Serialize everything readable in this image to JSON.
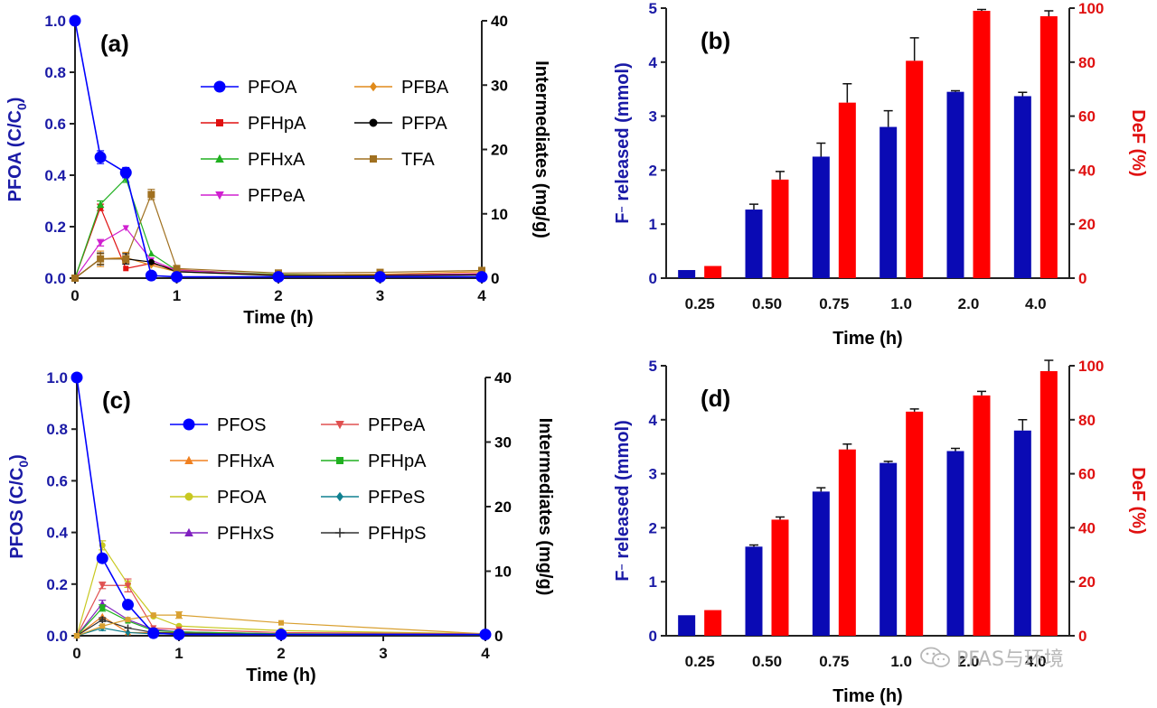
{
  "chart_data": [
    {
      "id": "a",
      "type": "line",
      "panel_label": "(a)",
      "xlabel": "Time (h)",
      "ylabel_left": "PFOA (C/C0)",
      "ylabel_left_main": "PFOA (C/C",
      "ylabel_left_sub": "0",
      "ylabel_left_close": ")",
      "ylabel_right": "Intermediates (mg/g)",
      "xlim": [
        0,
        4
      ],
      "ylim_left": [
        0,
        1.0
      ],
      "ylim_right": [
        0,
        40
      ],
      "x_ticks": [
        0,
        1,
        2,
        3,
        4
      ],
      "y_left_ticks": [
        "0.0",
        "0.2",
        "0.4",
        "0.6",
        "0.8",
        "1.0"
      ],
      "y_right_ticks": [
        "0",
        "10",
        "20",
        "30",
        "40"
      ],
      "colors": {
        "left_axis": "#1a1aa6",
        "right_axis": "#000000"
      },
      "legend_placement": "top-right",
      "series": [
        {
          "name": "PFOA",
          "axis": "left",
          "color": "#0000ff",
          "marker": "circle",
          "marker_size": 6,
          "x": [
            0,
            0.25,
            0.5,
            0.75,
            1,
            2,
            3,
            4
          ],
          "y": [
            1.0,
            0.47,
            0.41,
            0.01,
            0.005,
            0.005,
            0.005,
            0.005
          ],
          "err": [
            0,
            0.025,
            0.02,
            0,
            0,
            0,
            0,
            0
          ]
        },
        {
          "name": "PFHpA",
          "axis": "right",
          "color": "#e01010",
          "marker": "square",
          "marker_size": 3,
          "x": [
            0,
            0.25,
            0.5,
            0.75,
            1,
            2,
            3,
            4
          ],
          "y": [
            0,
            11,
            1.5,
            2.3,
            1.3,
            0.5,
            0.5,
            0.7
          ],
          "err": [
            0,
            0.5,
            0,
            0,
            0,
            0,
            0,
            0
          ]
        },
        {
          "name": "PFHxA",
          "axis": "right",
          "color": "#20b020",
          "marker": "triangle",
          "marker_size": 3,
          "x": [
            0,
            0.25,
            0.5,
            0.75,
            1,
            2,
            3,
            4
          ],
          "y": [
            0,
            11.5,
            15.5,
            3.8,
            1.2,
            0.6,
            0.5,
            0.6
          ],
          "err": [
            0,
            0.5,
            0.6,
            0,
            0,
            0,
            0,
            0
          ]
        },
        {
          "name": "PFPeA",
          "axis": "right",
          "color": "#d020d0",
          "marker": "triangle-down",
          "marker_size": 3,
          "x": [
            0,
            0.25,
            0.5,
            0.75,
            1,
            2,
            3,
            4
          ],
          "y": [
            0,
            5.5,
            7.8,
            2.8,
            1.2,
            0.5,
            0.5,
            0.6
          ],
          "err": [
            0,
            0.5,
            0,
            0,
            0,
            0,
            0,
            0
          ]
        },
        {
          "name": "PFBA",
          "axis": "right",
          "color": "#e08a1a",
          "marker": "diamond",
          "marker_size": 3,
          "x": [
            0,
            0.25,
            0.5,
            0.75,
            1,
            2,
            3,
            4
          ],
          "y": [
            0,
            3.0,
            3.2,
            2.0,
            1.0,
            0.5,
            0.6,
            1.0
          ],
          "err": [
            0,
            1.2,
            0.8,
            0,
            0,
            0,
            0,
            0.3
          ]
        },
        {
          "name": "PFPA",
          "axis": "right",
          "color": "#000000",
          "marker": "circle",
          "marker_size": 3,
          "x": [
            0,
            0.25,
            0.5,
            0.75,
            1,
            2,
            3,
            4
          ],
          "y": [
            0,
            3.0,
            3.0,
            2.5,
            1.0,
            0.4,
            0.4,
            0.5
          ],
          "err": [
            0,
            0.9,
            0.8,
            0,
            0,
            0,
            0,
            0
          ]
        },
        {
          "name": "TFA",
          "axis": "right",
          "color": "#a07020",
          "marker": "square",
          "marker_size": 4,
          "x": [
            0,
            0.25,
            0.5,
            0.75,
            1,
            2,
            3,
            4
          ],
          "y": [
            0,
            3.0,
            3.0,
            13.0,
            1.5,
            0.8,
            0.9,
            1.2
          ],
          "err": [
            0,
            0.8,
            0.5,
            0.8,
            0,
            0,
            0,
            0
          ]
        }
      ]
    },
    {
      "id": "b",
      "type": "bar",
      "panel_label": "(b)",
      "xlabel": "Time (h)",
      "ylabel_left": "F⁻ released (mmol)",
      "ylabel_left_parts": [
        "F",
        "⁻",
        " released (mmol)"
      ],
      "ylabel_right": "DeF (%)",
      "categories": [
        "0.25",
        "0.50",
        "0.75",
        "1.0",
        "2.0",
        "4.0"
      ],
      "ylim_left": [
        0,
        5
      ],
      "ylim_right": [
        0,
        100
      ],
      "y_left_ticks": [
        "0",
        "1",
        "2",
        "3",
        "4",
        "5"
      ],
      "y_right_ticks": [
        "0",
        "20",
        "40",
        "60",
        "80",
        "100"
      ],
      "colors": {
        "left_axis": "#1a1aa6",
        "right_axis": "#e01010",
        "bar_left": "#0a0ab4",
        "bar_right": "#ff0000"
      },
      "series": [
        {
          "name": "F⁻ released",
          "axis": "left",
          "color": "#0a0ab4",
          "values": [
            0.15,
            1.27,
            2.25,
            2.8,
            3.45,
            3.37
          ],
          "err": [
            0,
            0.1,
            0.25,
            0.3,
            0.02,
            0.07
          ]
        },
        {
          "name": "DeF",
          "axis": "right",
          "color": "#ff0000",
          "values": [
            4.5,
            36.5,
            65,
            80.5,
            99,
            97
          ],
          "err": [
            0,
            3,
            7,
            8.5,
            0.5,
            2
          ]
        }
      ]
    },
    {
      "id": "c",
      "type": "line",
      "panel_label": "(c)",
      "xlabel": "Time (h)",
      "ylabel_left": "PFOS (C/C0)",
      "ylabel_left_main": "PFOS (C/C",
      "ylabel_left_sub": "0",
      "ylabel_left_close": ")",
      "ylabel_right": "Intermediates (mg/g)",
      "xlim": [
        0,
        4
      ],
      "ylim_left": [
        0,
        1.0
      ],
      "ylim_right": [
        0,
        40
      ],
      "x_ticks": [
        0,
        1,
        2,
        3,
        4
      ],
      "y_left_ticks": [
        "0.0",
        "0.2",
        "0.4",
        "0.6",
        "0.8",
        "1.0"
      ],
      "y_right_ticks": [
        "0",
        "10",
        "20",
        "30",
        "40"
      ],
      "colors": {
        "left_axis": "#1a1aa6",
        "right_axis": "#000000"
      },
      "legend_placement": "top-right",
      "series": [
        {
          "name": "PFOS",
          "axis": "left",
          "color": "#0000ff",
          "marker": "circle",
          "marker_size": 6,
          "x": [
            0,
            0.25,
            0.5,
            0.75,
            1,
            2,
            4
          ],
          "y": [
            1.0,
            0.3,
            0.12,
            0.01,
            0.005,
            0.005,
            0.005
          ],
          "err": [
            0,
            0.015,
            0.01,
            0,
            0,
            0,
            0
          ]
        },
        {
          "name": "PFHxA",
          "axis": "right",
          "color": "#f08020",
          "marker": "triangle",
          "marker_size": 3,
          "x": [
            0,
            0.25,
            0.5,
            0.75,
            1,
            2,
            4
          ],
          "y": [
            0,
            3,
            0.5,
            0.5,
            0.5,
            0.3,
            0.2
          ],
          "err": [
            0,
            0,
            0,
            0,
            0,
            0,
            0
          ]
        },
        {
          "name": "PFOA",
          "axis": "right",
          "color": "#c8c820",
          "marker": "circle",
          "marker_size": 3,
          "x": [
            0,
            0.25,
            0.5,
            0.75,
            1,
            2,
            4
          ],
          "y": [
            0,
            14,
            8,
            3,
            1.5,
            0.8,
            0.3
          ],
          "err": [
            0,
            0.7,
            0.5,
            0,
            0,
            0,
            0
          ]
        },
        {
          "name": "PFHxS",
          "axis": "right",
          "color": "#8020c0",
          "marker": "triangle",
          "marker_size": 3,
          "x": [
            0,
            0.25,
            0.5,
            0.75,
            1,
            2,
            4
          ],
          "y": [
            0,
            5,
            2.5,
            1,
            0.6,
            0.3,
            0.2
          ],
          "err": [
            0,
            0.5,
            0,
            0,
            0,
            0,
            0
          ]
        },
        {
          "name": "PFPeA",
          "axis": "right",
          "color": "#e05050",
          "marker": "triangle-down",
          "marker_size": 3,
          "x": [
            0,
            0.25,
            0.5,
            0.75,
            1,
            2,
            4
          ],
          "y": [
            0,
            7.8,
            7.8,
            1.2,
            1.0,
            0.5,
            0.3
          ],
          "err": [
            0,
            0.5,
            1.0,
            0,
            0,
            0,
            0
          ]
        },
        {
          "name": "PFHpA",
          "axis": "right",
          "color": "#20b020",
          "marker": "square",
          "marker_size": 3,
          "x": [
            0,
            0.25,
            0.5,
            0.75,
            1,
            2,
            4
          ],
          "y": [
            0,
            4.3,
            2.3,
            0.8,
            0.6,
            0.3,
            0.2
          ],
          "err": [
            0,
            0.5,
            0,
            0,
            0,
            0,
            0
          ]
        },
        {
          "name": "PFPeS",
          "axis": "right",
          "color": "#108090",
          "marker": "diamond",
          "marker_size": 3,
          "x": [
            0,
            0.25,
            0.5,
            0.75,
            1,
            2,
            4
          ],
          "y": [
            0,
            1.2,
            0.5,
            0.3,
            0.3,
            0.2,
            0.1
          ],
          "err": [
            0,
            0.4,
            0,
            0,
            0,
            0,
            0
          ]
        },
        {
          "name": "PFHpS",
          "axis": "right",
          "color": "#303030",
          "marker": "plus",
          "marker_size": 3,
          "x": [
            0,
            0.25,
            0.5,
            0.75,
            1,
            2,
            4
          ],
          "y": [
            0,
            2.5,
            1.2,
            0.5,
            0.4,
            0.2,
            0.1
          ],
          "err": [
            0,
            0.3,
            0,
            0,
            0,
            0,
            0
          ]
        },
        {
          "name": "",
          "axis": "right",
          "color": "#d9a030",
          "marker": "square",
          "marker_size": 3,
          "x": [
            0,
            0.25,
            0.5,
            0.75,
            1,
            2,
            4
          ],
          "y": [
            0,
            1.5,
            2.5,
            3.2,
            3.2,
            2.0,
            0.3
          ],
          "err": [
            0,
            0,
            0,
            0,
            0.5,
            0,
            0
          ]
        }
      ]
    },
    {
      "id": "d",
      "type": "bar",
      "panel_label": "(d)",
      "xlabel": "Time (h)",
      "ylabel_left": "F⁻ released (mmol)",
      "ylabel_left_parts": [
        "F",
        "⁻",
        " released (mmol)"
      ],
      "ylabel_right": "DeF (%)",
      "categories": [
        "0.25",
        "0.50",
        "0.75",
        "1.0",
        "2.0",
        "4.0"
      ],
      "ylim_left": [
        0,
        5
      ],
      "ylim_right": [
        0,
        100
      ],
      "y_left_ticks": [
        "0",
        "1",
        "2",
        "3",
        "4",
        "5"
      ],
      "y_right_ticks": [
        "0",
        "20",
        "40",
        "60",
        "80",
        "100"
      ],
      "colors": {
        "left_axis": "#1a1aa6",
        "right_axis": "#e01010",
        "bar_left": "#0a0ab4",
        "bar_right": "#ff0000"
      },
      "series": [
        {
          "name": "F⁻ released",
          "axis": "left",
          "color": "#0a0ab4",
          "values": [
            0.38,
            1.65,
            2.67,
            3.2,
            3.42,
            3.8
          ],
          "err": [
            0,
            0.03,
            0.07,
            0.03,
            0.05,
            0.2
          ]
        },
        {
          "name": "DeF",
          "axis": "right",
          "color": "#ff0000",
          "values": [
            9.5,
            43,
            69,
            83,
            89,
            98
          ],
          "err": [
            0,
            1,
            2,
            1,
            1.5,
            4
          ]
        }
      ]
    }
  ],
  "legends": {
    "a": [
      [
        "PFOA",
        "PFBA"
      ],
      [
        "PFHpA",
        "PFPA"
      ],
      [
        "PFHxA",
        "TFA"
      ],
      [
        "PFPeA",
        null
      ]
    ],
    "c": [
      [
        "PFOS",
        "PFPeA"
      ],
      [
        "PFHxA",
        "PFHpA"
      ],
      [
        "PFOA",
        "PFPeS"
      ],
      [
        "PFHxS",
        "PFHpS"
      ]
    ]
  },
  "watermark": {
    "text": "PFAS与环境",
    "icon": "wechat-icon"
  }
}
